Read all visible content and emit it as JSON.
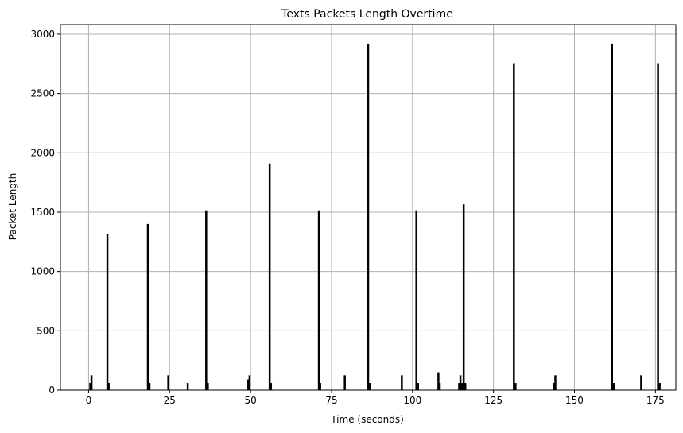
{
  "chart_data": {
    "type": "bar",
    "title": "Texts Packets Length Overtime",
    "xlabel": "Time (seconds)",
    "ylabel": "Packet Length",
    "xlim": [
      -8.7,
      181.3
    ],
    "ylim": [
      0,
      3080
    ],
    "xticks": [
      0,
      25,
      50,
      75,
      100,
      125,
      150,
      175
    ],
    "yticks": [
      0,
      500,
      1000,
      1500,
      2000,
      2500,
      3000
    ],
    "grid": true,
    "bar_color": "#000000",
    "grid_color": "#b0b0b0",
    "series": [
      {
        "x": [
          0.5,
          0.9,
          5.8,
          6.2,
          18.3,
          18.8,
          24.6,
          30.6,
          36.3,
          36.8,
          49.3,
          49.7,
          55.9,
          56.3,
          71.1,
          71.5,
          79.1,
          86.3,
          86.8,
          96.7,
          101.2,
          101.7,
          108.0,
          108.4,
          114.4,
          114.8,
          115.3,
          115.8,
          116.3,
          131.3,
          131.8,
          143.7,
          144.1,
          161.6,
          162.1,
          170.6,
          175.8,
          176.3
        ],
        "values": [
          60,
          125,
          1315,
          60,
          1400,
          60,
          125,
          60,
          1515,
          60,
          90,
          125,
          1910,
          60,
          1515,
          60,
          125,
          2920,
          60,
          125,
          1515,
          60,
          150,
          60,
          60,
          125,
          60,
          1565,
          60,
          2755,
          60,
          60,
          125,
          2920,
          60,
          125,
          2755,
          60
        ]
      }
    ]
  }
}
